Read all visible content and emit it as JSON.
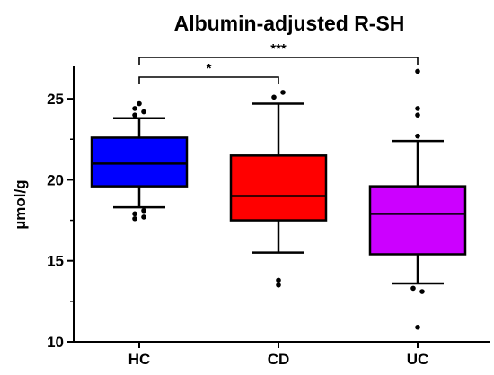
{
  "chart_data": {
    "type": "box",
    "title": "Albumin-adjusted R-SH",
    "xlabel": "",
    "ylabel": "µmol/g",
    "ylim": [
      10,
      27
    ],
    "yticks": [
      10,
      15,
      20,
      25
    ],
    "grid": false,
    "legend": "none",
    "categories": [
      "HC",
      "CD",
      "UC"
    ],
    "boxes": [
      {
        "name": "HC",
        "color": "#0000ff",
        "whisker_low": 18.3,
        "q1": 19.6,
        "median": 21.0,
        "q3": 22.6,
        "whisker_high": 23.8,
        "outliers": [
          17.6,
          17.7,
          17.9,
          18.1,
          24.0,
          24.2,
          24.4,
          24.7
        ]
      },
      {
        "name": "CD",
        "color": "#ff0000",
        "whisker_low": 15.5,
        "q1": 17.5,
        "median": 19.0,
        "q3": 21.5,
        "whisker_high": 24.7,
        "outliers": [
          13.5,
          13.8,
          25.1,
          25.4
        ]
      },
      {
        "name": "UC",
        "color": "#cc00ff",
        "whisker_low": 13.6,
        "q1": 15.4,
        "median": 17.9,
        "q3": 19.6,
        "whisker_high": 22.4,
        "outliers": [
          10.9,
          13.1,
          13.3,
          22.7,
          24.0,
          24.4,
          26.7
        ]
      }
    ],
    "significance": [
      {
        "from": "HC",
        "to": "CD",
        "label": "*"
      },
      {
        "from": "HC",
        "to": "UC",
        "label": "***"
      }
    ]
  }
}
